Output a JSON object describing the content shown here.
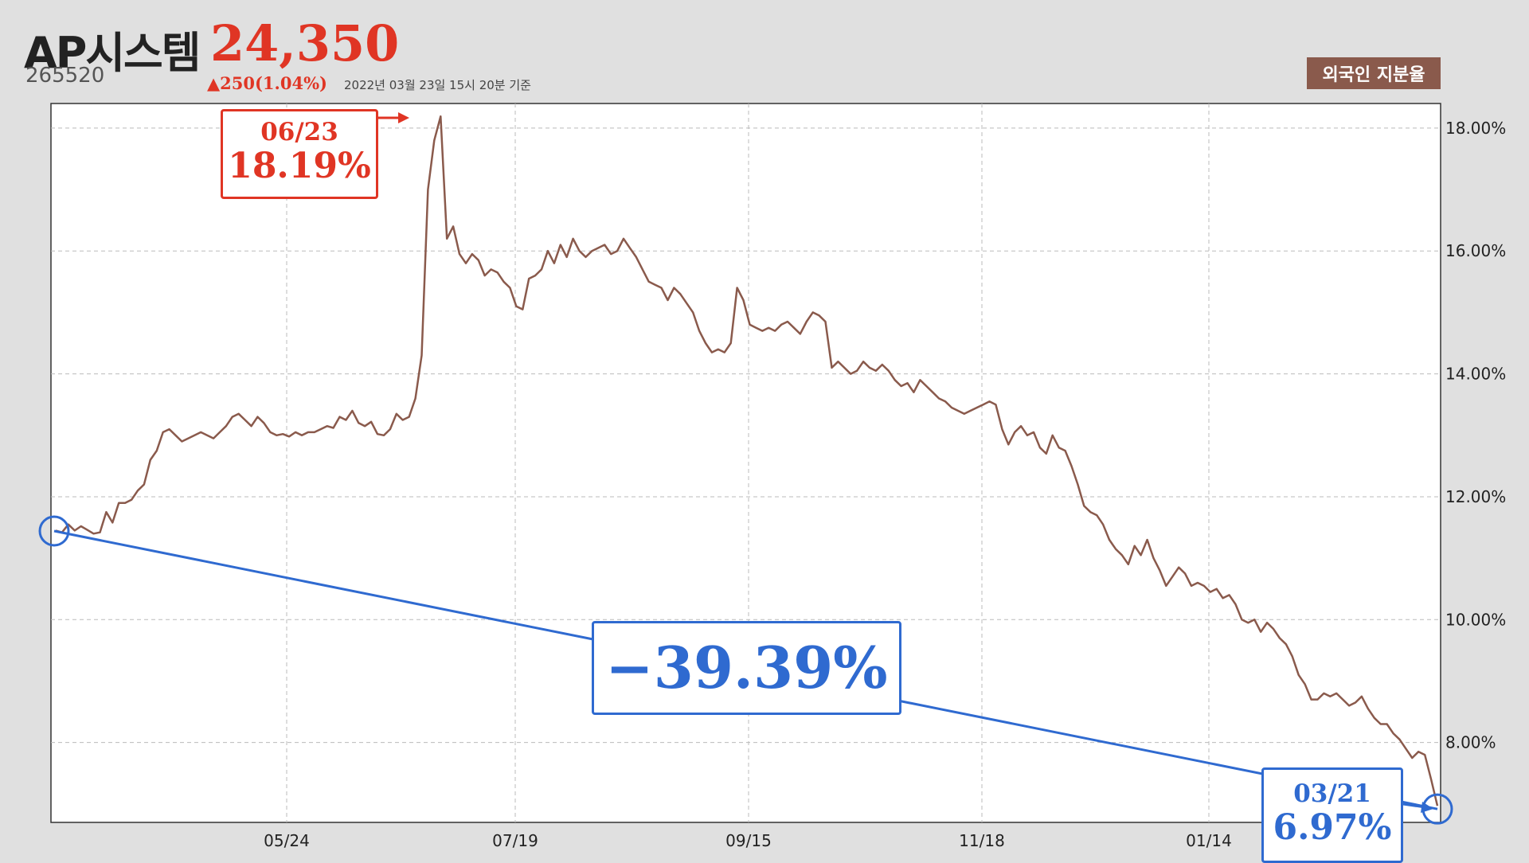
{
  "header": {
    "title": "AP시스템",
    "price": "24,350",
    "code": "265520",
    "change": "▲250(1.04%)",
    "date_note": "2022년 03월 23일 15시 20분 기준",
    "badge": "외국인 지분율"
  },
  "annotations": {
    "peak_date": "06/23",
    "peak_value": "18.19%",
    "change_pct": "−39.39%",
    "end_date": "03/21",
    "end_value": "6.97%"
  },
  "colors": {
    "line": "#8a5a4c",
    "peak": "#e03524",
    "change": "#2f6ad0"
  },
  "chart_data": {
    "type": "line",
    "title": "외국인 지분율",
    "x_ticks": [
      "05/24",
      "07/19",
      "09/15",
      "11/18",
      "01/14"
    ],
    "y_ticks": [
      "8.00%",
      "10.00%",
      "12.00%",
      "14.00%",
      "16.00%",
      "18.00%"
    ],
    "ylim": [
      6.7,
      18.4
    ],
    "grid": true,
    "series": [
      {
        "name": "외국인 지분율",
        "values": [
          11.45,
          11.42,
          11.55,
          11.45,
          11.52,
          11.46,
          11.4,
          11.42,
          11.75,
          11.58,
          11.9,
          11.9,
          11.95,
          12.1,
          12.2,
          12.6,
          12.75,
          13.05,
          13.1,
          13.0,
          12.9,
          12.95,
          13.0,
          13.05,
          13.0,
          12.95,
          13.05,
          13.15,
          13.3,
          13.35,
          13.25,
          13.15,
          13.3,
          13.2,
          13.05,
          13.0,
          13.02,
          12.98,
          13.05,
          13.0,
          13.05,
          13.05,
          13.1,
          13.15,
          13.12,
          13.3,
          13.25,
          13.4,
          13.2,
          13.15,
          13.22,
          13.02,
          13.0,
          13.1,
          13.35,
          13.25,
          13.3,
          13.6,
          14.3,
          17.0,
          17.8,
          18.19,
          16.2,
          16.4,
          15.95,
          15.8,
          15.95,
          15.85,
          15.6,
          15.7,
          15.65,
          15.5,
          15.4,
          15.1,
          15.05,
          15.55,
          15.6,
          15.7,
          16.0,
          15.8,
          16.1,
          15.9,
          16.2,
          16.0,
          15.9,
          16.0,
          16.05,
          16.1,
          15.95,
          16.0,
          16.2,
          16.05,
          15.9,
          15.7,
          15.5,
          15.45,
          15.4,
          15.2,
          15.4,
          15.3,
          15.15,
          15.0,
          14.7,
          14.5,
          14.35,
          14.4,
          14.35,
          14.5,
          15.4,
          15.2,
          14.8,
          14.75,
          14.7,
          14.75,
          14.7,
          14.8,
          14.85,
          14.75,
          14.65,
          14.85,
          15.0,
          14.95,
          14.85,
          14.1,
          14.2,
          14.1,
          14.0,
          14.05,
          14.2,
          14.1,
          14.05,
          14.15,
          14.05,
          13.9,
          13.8,
          13.85,
          13.7,
          13.9,
          13.8,
          13.7,
          13.6,
          13.55,
          13.45,
          13.4,
          13.35,
          13.4,
          13.45,
          13.5,
          13.55,
          13.5,
          13.1,
          12.85,
          13.05,
          13.15,
          13.0,
          13.05,
          12.8,
          12.7,
          13.0,
          12.8,
          12.75,
          12.5,
          12.2,
          11.85,
          11.75,
          11.7,
          11.55,
          11.3,
          11.15,
          11.05,
          10.9,
          11.2,
          11.05,
          11.3,
          11.0,
          10.8,
          10.55,
          10.7,
          10.85,
          10.75,
          10.55,
          10.6,
          10.55,
          10.45,
          10.5,
          10.35,
          10.4,
          10.25,
          10.0,
          9.95,
          10.0,
          9.8,
          9.95,
          9.85,
          9.7,
          9.6,
          9.4,
          9.1,
          8.95,
          8.7,
          8.7,
          8.8,
          8.75,
          8.8,
          8.7,
          8.6,
          8.65,
          8.75,
          8.55,
          8.4,
          8.3,
          8.3,
          8.15,
          8.05,
          7.9,
          7.75,
          7.85,
          7.8,
          7.4,
          6.97
        ]
      }
    ]
  }
}
